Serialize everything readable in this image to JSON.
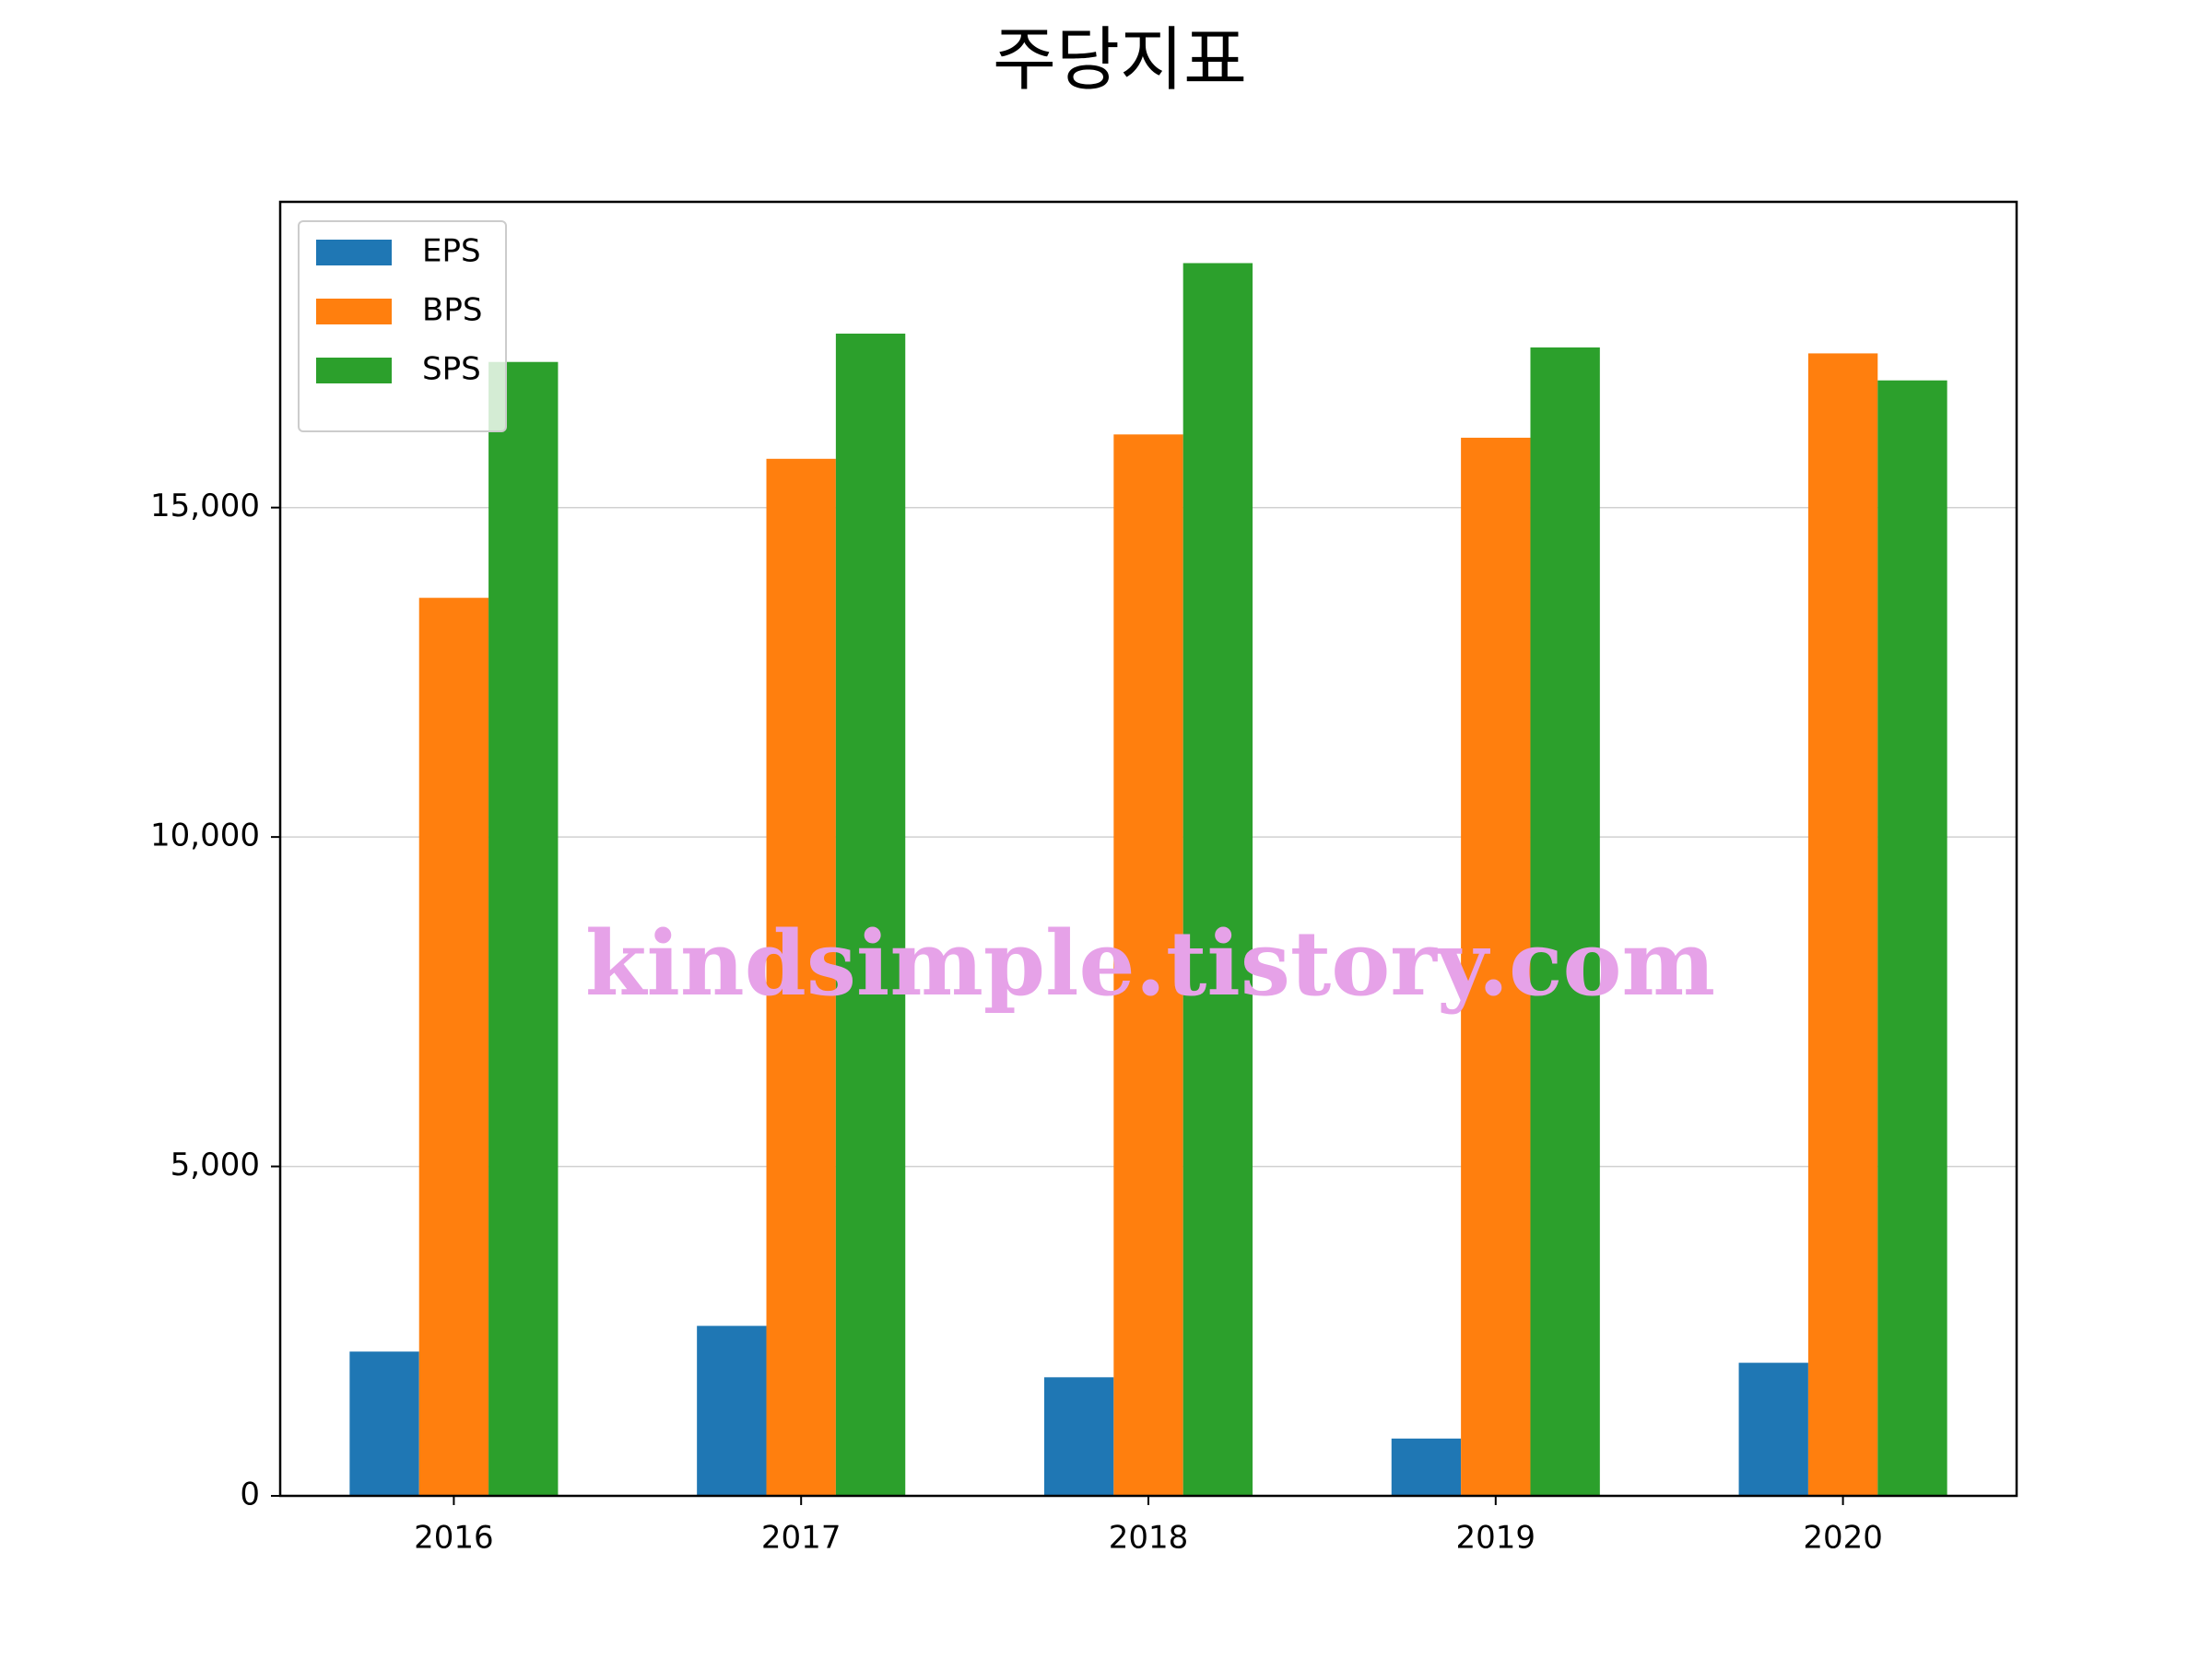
{
  "chart_data": {
    "type": "bar",
    "title": "주당지표",
    "categories": [
      "2016",
      "2017",
      "2018",
      "2019",
      "2020"
    ],
    "series": [
      {
        "name": "EPS",
        "color": "#1f77b4",
        "values": [
          2190,
          2580,
          1800,
          870,
          2020
        ]
      },
      {
        "name": "BPS",
        "color": "#ff7f0e",
        "values": [
          13630,
          15740,
          16110,
          16060,
          17340
        ]
      },
      {
        "name": "SPS",
        "color": "#2ca02c",
        "values": [
          17210,
          17640,
          18710,
          17430,
          16930
        ]
      }
    ],
    "ylim": [
      0,
      19640
    ],
    "yticks": [
      0,
      {
        "value": 5000,
        "label": "5,000"
      },
      {
        "value": 10000,
        "label": "10,000"
      },
      {
        "value": 15000,
        "label": "15,000"
      }
    ],
    "grid": true,
    "legend": "upper left",
    "watermark": "kindsimple.tistory.com"
  }
}
